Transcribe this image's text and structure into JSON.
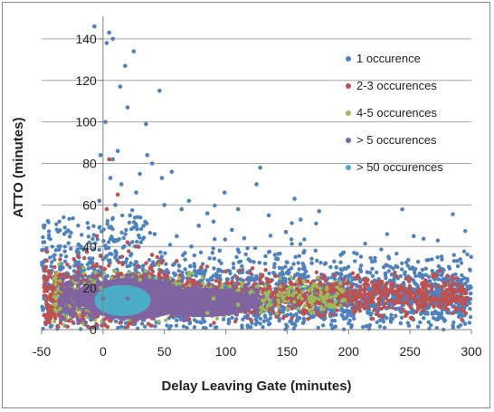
{
  "chart_data": {
    "type": "scatter",
    "xlabel": "Delay Leaving Gate (minutes)",
    "ylabel": "ATTO (minutes)",
    "xlim": [
      -50,
      300
    ],
    "ylim": [
      0,
      150
    ],
    "x_ticks": [
      -50,
      0,
      50,
      100,
      150,
      200,
      250,
      300
    ],
    "y_ticks": [
      0,
      20,
      40,
      60,
      80,
      100,
      120,
      140
    ],
    "grid": "horizontal",
    "legend_position": "right",
    "series": [
      {
        "name": "1 occurence",
        "color": "#4f81bd",
        "points": [
          [
            -7,
            146
          ],
          [
            5,
            143
          ],
          [
            8,
            140
          ],
          [
            3,
            138
          ],
          [
            14,
            117
          ],
          [
            25,
            134
          ],
          [
            18,
            127
          ],
          [
            46,
            115
          ],
          [
            35,
            99
          ],
          [
            2,
            100
          ],
          [
            -2,
            84
          ],
          [
            20,
            107
          ],
          [
            8,
            82
          ],
          [
            12,
            86
          ],
          [
            40,
            80
          ],
          [
            30,
            75
          ],
          [
            36,
            84
          ],
          [
            27,
            66
          ],
          [
            48,
            73
          ],
          [
            56,
            76
          ],
          [
            128,
            78
          ],
          [
            125,
            70
          ],
          [
            156,
            63
          ],
          [
            99,
            66
          ],
          [
            110,
            58
          ],
          [
            135,
            55
          ],
          [
            149,
            47
          ],
          [
            161,
            53
          ],
          [
            176,
            57
          ],
          [
            253,
            45
          ],
          [
            85,
            56
          ],
          [
            90,
            52
          ],
          [
            105,
            48
          ],
          [
            115,
            44
          ],
          [
            64,
            58
          ],
          [
            70,
            62
          ],
          [
            78,
            50
          ],
          [
            6,
            73
          ],
          [
            15,
            70
          ],
          [
            -3,
            62
          ],
          [
            -20,
            41
          ],
          [
            -35,
            30
          ],
          [
            -45,
            22
          ],
          [
            10,
            60
          ],
          [
            22,
            55
          ],
          [
            33,
            50
          ],
          [
            42,
            46
          ],
          [
            50,
            60
          ],
          [
            60,
            45
          ],
          [
            72,
            40
          ],
          [
            95,
            38
          ],
          [
            120,
            33
          ],
          [
            140,
            36
          ],
          [
            170,
            32
          ],
          [
            190,
            30
          ],
          [
            210,
            28
          ],
          [
            230,
            27
          ],
          [
            260,
            25
          ],
          [
            280,
            24
          ],
          [
            295,
            22
          ],
          [
            -10,
            5
          ],
          [
            -30,
            8
          ],
          [
            -48,
            15
          ],
          [
            200,
            12
          ],
          [
            240,
            10
          ],
          [
            270,
            8
          ],
          [
            290,
            12
          ],
          [
            180,
            5
          ],
          [
            150,
            7
          ],
          [
            -5,
            1
          ]
        ]
      },
      {
        "name": "2-3 occurences",
        "color": "#c0504d",
        "points": [
          [
            5,
            82
          ],
          [
            12,
            65
          ],
          [
            3,
            58
          ],
          [
            -5,
            45
          ],
          [
            20,
            42
          ],
          [
            28,
            40
          ],
          [
            40,
            36
          ],
          [
            60,
            33
          ],
          [
            80,
            30
          ],
          [
            100,
            28
          ],
          [
            130,
            26
          ],
          [
            160,
            24
          ],
          [
            190,
            22
          ],
          [
            220,
            21
          ],
          [
            250,
            20
          ],
          [
            280,
            19
          ],
          [
            -20,
            30
          ],
          [
            -40,
            20
          ],
          [
            -45,
            12
          ],
          [
            150,
            15
          ],
          [
            200,
            14
          ]
        ]
      },
      {
        "name": "4-5 occurences",
        "color": "#9bbb59",
        "points": [
          [
            -2,
            20
          ],
          [
            10,
            28
          ],
          [
            30,
            24
          ],
          [
            60,
            22
          ],
          [
            90,
            15
          ],
          [
            110,
            12
          ],
          [
            130,
            14
          ],
          [
            150,
            10
          ],
          [
            -25,
            12
          ],
          [
            -35,
            10
          ],
          [
            70,
            26
          ],
          [
            120,
            18
          ],
          [
            170,
            13
          ],
          [
            85,
            8
          ]
        ]
      },
      {
        "name": "> 5 occurences",
        "color": "#8064a2",
        "points": [
          [
            0,
            15
          ],
          [
            20,
            15
          ],
          [
            40,
            15
          ],
          [
            60,
            15
          ],
          [
            80,
            14
          ],
          [
            100,
            13
          ],
          [
            -10,
            14
          ],
          [
            -25,
            12
          ],
          [
            120,
            14
          ]
        ]
      },
      {
        "name": "> 50 occurences",
        "color": "#4bacc6",
        "points": [
          [
            5,
            14
          ],
          [
            15,
            14
          ],
          [
            25,
            14
          ],
          [
            10,
            8
          ],
          [
            10,
            20
          ],
          [
            0,
            12
          ],
          [
            30,
            12
          ]
        ]
      }
    ]
  }
}
